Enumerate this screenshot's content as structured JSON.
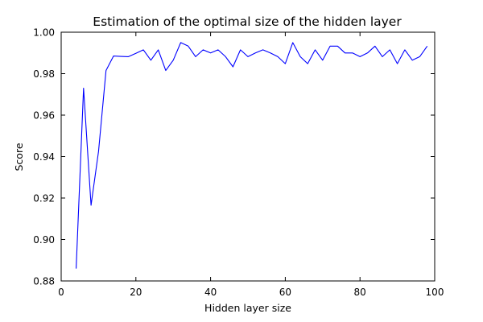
{
  "chart_data": {
    "type": "line",
    "title": "Estimation of the optimal size of the hidden layer",
    "xlabel": "Hidden layer size",
    "ylabel": "Score",
    "xlim": [
      0,
      100
    ],
    "ylim": [
      0.88,
      1.0
    ],
    "grid": false,
    "legend": "none",
    "x_ticks": [
      0,
      20,
      40,
      60,
      80,
      100
    ],
    "x_tick_labels": [
      "0",
      "20",
      "40",
      "60",
      "80",
      "100"
    ],
    "y_ticks": [
      0.88,
      0.9,
      0.92,
      0.94,
      0.96,
      0.98,
      1.0
    ],
    "y_tick_labels": [
      "0.88",
      "0.90",
      "0.92",
      "0.94",
      "0.96",
      "0.98",
      "1.00"
    ],
    "line_color": "#0000ff",
    "series": [
      {
        "x": [
          4,
          6,
          8,
          10,
          12,
          14,
          16,
          18,
          20,
          22,
          24,
          26,
          28,
          30,
          32,
          34,
          36,
          38,
          40,
          42,
          44,
          46,
          48,
          50,
          52,
          54,
          56,
          58,
          60,
          62,
          64,
          66,
          68,
          70,
          72,
          74,
          76,
          78,
          80,
          82,
          84,
          86,
          88,
          90,
          92,
          94,
          96,
          98
        ],
        "values": [
          0.886,
          0.973,
          0.9165,
          0.9425,
          0.9815,
          0.9885,
          0.9883,
          0.9882,
          0.9898,
          0.9915,
          0.9865,
          0.9915,
          0.9815,
          0.9865,
          0.995,
          0.9933,
          0.9882,
          0.9915,
          0.99,
          0.9915,
          0.9882,
          0.9833,
          0.9915,
          0.9882,
          0.99,
          0.9915,
          0.99,
          0.9882,
          0.9848,
          0.995,
          0.9882,
          0.9848,
          0.9915,
          0.9865,
          0.9933,
          0.9933,
          0.99,
          0.99,
          0.9882,
          0.99,
          0.9933,
          0.9882,
          0.9915,
          0.9848,
          0.9915,
          0.9865,
          0.9882,
          0.9933
        ]
      }
    ]
  }
}
